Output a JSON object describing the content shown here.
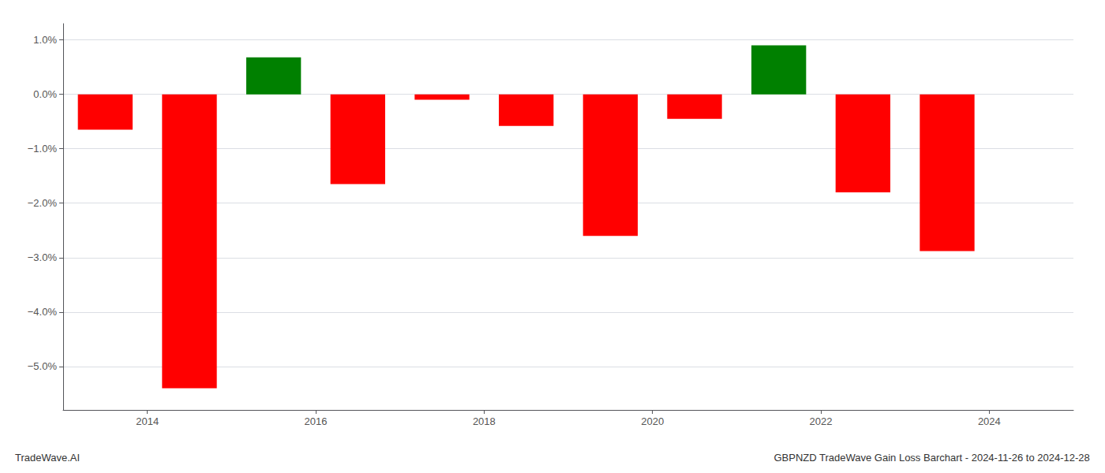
{
  "chart_data": {
    "type": "bar",
    "title": "GBPNZD TradeWave Gain Loss Barchart - 2024-11-26 to 2024-12-28",
    "annotations": [
      "TradeWave.AI"
    ],
    "x": [
      2013.5,
      2014.5,
      2015.5,
      2016.5,
      2017.5,
      2018.5,
      2019.5,
      2020.5,
      2021.5,
      2022.5,
      2023.5
    ],
    "values": [
      -0.65,
      -5.4,
      0.68,
      -1.65,
      -0.1,
      -0.58,
      -2.6,
      -0.45,
      0.9,
      -1.8,
      -2.88
    ],
    "colors": [
      "#ff0000",
      "#ff0000",
      "#008000",
      "#ff0000",
      "#ff0000",
      "#ff0000",
      "#ff0000",
      "#ff0000",
      "#008000",
      "#ff0000",
      "#ff0000"
    ],
    "xlim": [
      2013.0,
      2025.0
    ],
    "xticks": [
      2014,
      2016,
      2018,
      2020,
      2022,
      2024
    ],
    "ylim": [
      -5.8,
      1.3
    ],
    "yticks": [
      {
        "value": -5.0,
        "label": "−5.0%"
      },
      {
        "value": -4.0,
        "label": "−4.0%"
      },
      {
        "value": -3.0,
        "label": "−3.0%"
      },
      {
        "value": -2.0,
        "label": "−2.0%"
      },
      {
        "value": -1.0,
        "label": "−1.0%"
      },
      {
        "value": 0.0,
        "label": "0.0%"
      },
      {
        "value": 1.0,
        "label": "1.0%"
      }
    ],
    "grid": true
  }
}
